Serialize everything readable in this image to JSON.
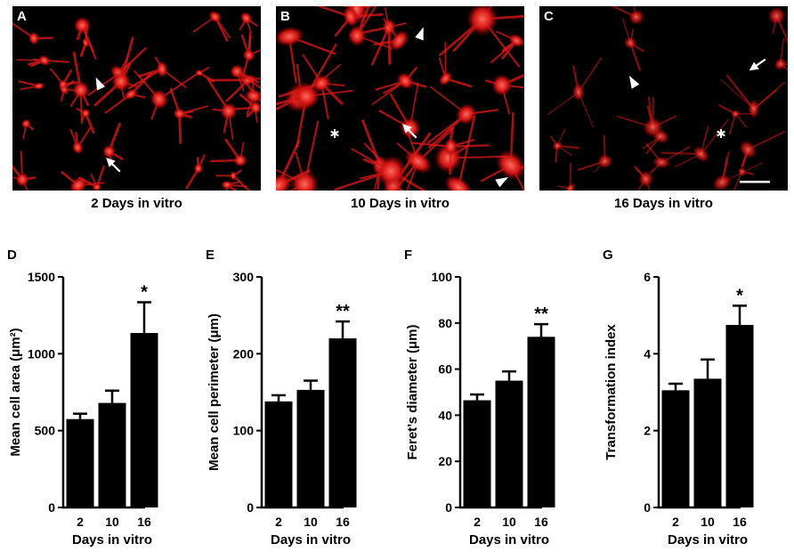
{
  "panels": {
    "A": {
      "letter": "A",
      "caption": "2 Days in vitro"
    },
    "B": {
      "letter": "B",
      "caption": "10 Days in vitro"
    },
    "C": {
      "letter": "C",
      "caption": "16 Days in vitro"
    }
  },
  "colors": {
    "cells": "#e01818",
    "background": "#000000",
    "bars": "#000000"
  },
  "chart_data": [
    {
      "type": "bar",
      "letter": "D",
      "categories": [
        "2",
        "10",
        "16"
      ],
      "values": [
        575,
        680,
        1135
      ],
      "errors": [
        35,
        80,
        200
      ],
      "significance": [
        "",
        "",
        "*"
      ],
      "ylabel": "Mean cell area (μm²)",
      "xlabel": "Days in vitro",
      "ylim": [
        0,
        1500
      ],
      "yticks": [
        0,
        500,
        1000,
        1500
      ]
    },
    {
      "type": "bar",
      "letter": "E",
      "categories": [
        "2",
        "10",
        "16"
      ],
      "values": [
        138,
        153,
        220
      ],
      "errors": [
        8,
        12,
        22
      ],
      "significance": [
        "",
        "",
        "**"
      ],
      "ylabel": "Mean cell perimeter (μm)",
      "xlabel": "Days in vitro",
      "ylim": [
        0,
        300
      ],
      "yticks": [
        0,
        100,
        200,
        300
      ]
    },
    {
      "type": "bar",
      "letter": "F",
      "categories": [
        "2",
        "10",
        "16"
      ],
      "values": [
        46.5,
        55,
        74
      ],
      "errors": [
        2.5,
        4,
        5.5
      ],
      "significance": [
        "",
        "",
        "**"
      ],
      "ylabel": "Feret’s diameter (μm)",
      "xlabel": "Days in vitro",
      "ylim": [
        0,
        100
      ],
      "yticks": [
        0,
        20,
        40,
        60,
        80,
        100
      ]
    },
    {
      "type": "bar",
      "letter": "G",
      "categories": [
        "2",
        "10",
        "16"
      ],
      "values": [
        3.05,
        3.35,
        4.75
      ],
      "errors": [
        0.17,
        0.5,
        0.5
      ],
      "significance": [
        "",
        "",
        "*"
      ],
      "ylabel": "Transformation index",
      "xlabel": "Days in vitro",
      "ylim": [
        0,
        6
      ],
      "yticks": [
        0,
        2,
        4,
        6
      ]
    }
  ]
}
